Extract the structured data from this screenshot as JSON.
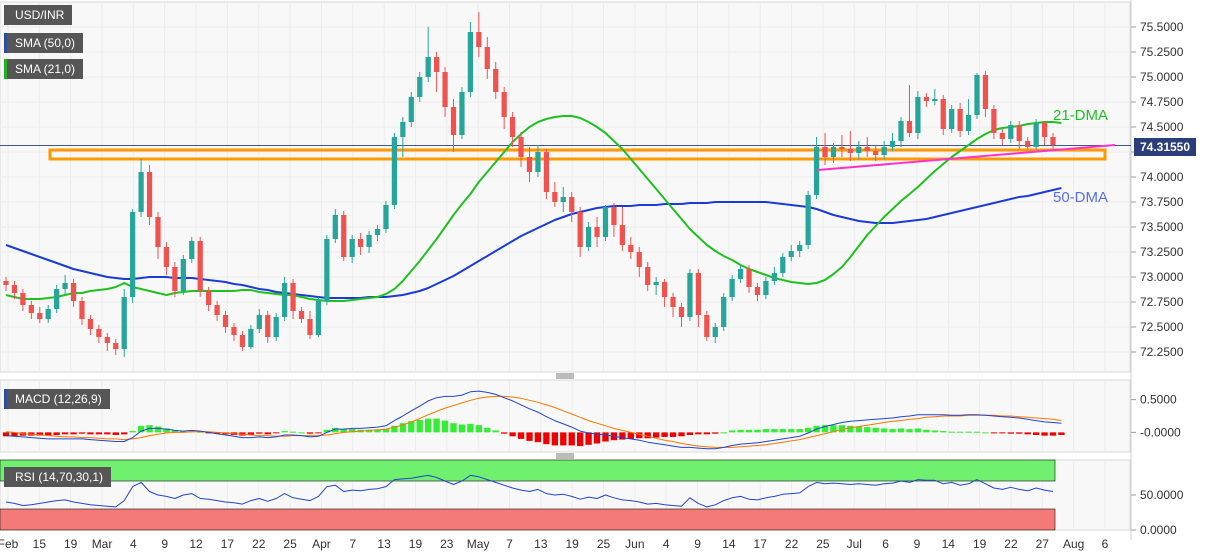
{
  "symbol_label": "USD/INR",
  "indicators": {
    "sma50_label": "SMA (50,0)",
    "sma21_label": "SMA (21,0)",
    "macd_label": "MACD (12,26,9)",
    "rsi_label": "RSI (14,70,30,1)"
  },
  "annotations": {
    "dma21": "21-DMA",
    "dma50": "50-DMA"
  },
  "last_price": "74.31550",
  "colors": {
    "up": "#26a69a",
    "down": "#ef5350",
    "sma21": "#21c021",
    "sma50": "#1c3bd6",
    "support_zone": "#ff9900",
    "trendline": "#ff33cc",
    "macd_line": "#2244cc",
    "signal_line": "#ff7700",
    "hist_pos": "#33ee33",
    "hist_neg": "#ee0000",
    "rsi_overbought": "#6ff06f",
    "rsi_oversold": "#f47a7a"
  },
  "chart_data": {
    "type": "candlestick",
    "price_axis": {
      "range": [
        72.05,
        75.75
      ],
      "ticks": [
        "75.5000",
        "75.2500",
        "75.0000",
        "74.7500",
        "74.5000",
        "74.2500",
        "74.0000",
        "73.7500",
        "73.5000",
        "73.2500",
        "73.0000",
        "72.7500",
        "72.5000",
        "72.2500"
      ]
    },
    "date_axis": {
      "ticks": [
        "Feb",
        "15",
        "19",
        "Mar",
        "4",
        "9",
        "12",
        "17",
        "22",
        "25",
        "Apr",
        "7",
        "13",
        "19",
        "23",
        "May",
        "7",
        "13",
        "19",
        "25",
        "Jun",
        "4",
        "9",
        "14",
        "17",
        "22",
        "25",
        "Jul",
        "6",
        "9",
        "14",
        "19",
        "22",
        "27",
        "Aug",
        "6"
      ]
    },
    "macd_axis": {
      "ticks": [
        "0.5000",
        "-0.0000"
      ]
    },
    "rsi_axis": {
      "ticks": [
        "50.0000",
        "0.0000"
      ]
    },
    "candles": [
      [
        72.96,
        72.92,
        73.0,
        72.86
      ],
      [
        72.92,
        72.84,
        72.96,
        72.78
      ],
      [
        72.84,
        72.72,
        72.88,
        72.66
      ],
      [
        72.72,
        72.64,
        72.76,
        72.58
      ],
      [
        72.64,
        72.58,
        72.7,
        72.54
      ],
      [
        72.58,
        72.68,
        72.72,
        72.54
      ],
      [
        72.68,
        72.88,
        72.92,
        72.64
      ],
      [
        72.88,
        72.94,
        73.02,
        72.82
      ],
      [
        72.94,
        72.76,
        72.98,
        72.7
      ],
      [
        72.76,
        72.58,
        72.8,
        72.52
      ],
      [
        72.58,
        72.48,
        72.62,
        72.42
      ],
      [
        72.48,
        72.4,
        72.52,
        72.34
      ],
      [
        72.4,
        72.34,
        72.44,
        72.26
      ],
      [
        72.34,
        72.28,
        72.38,
        72.22
      ],
      [
        72.28,
        72.8,
        72.88,
        72.2
      ],
      [
        72.8,
        73.65,
        73.68,
        72.74
      ],
      [
        73.65,
        74.05,
        74.18,
        73.6
      ],
      [
        74.05,
        73.6,
        74.12,
        73.52
      ],
      [
        73.6,
        73.3,
        73.65,
        73.18
      ],
      [
        73.3,
        73.1,
        73.35,
        73.02
      ],
      [
        73.1,
        72.86,
        73.15,
        72.8
      ],
      [
        72.86,
        73.18,
        73.22,
        72.82
      ],
      [
        73.18,
        73.36,
        73.4,
        73.14
      ],
      [
        73.36,
        72.86,
        73.4,
        72.8
      ],
      [
        72.86,
        72.72,
        72.9,
        72.66
      ],
      [
        72.72,
        72.62,
        72.76,
        72.56
      ],
      [
        72.62,
        72.5,
        72.66,
        72.44
      ],
      [
        72.5,
        72.42,
        72.54,
        72.36
      ],
      [
        72.42,
        72.3,
        72.46,
        72.26
      ],
      [
        72.3,
        72.48,
        72.52,
        72.28
      ],
      [
        72.48,
        72.62,
        72.68,
        72.44
      ],
      [
        72.62,
        72.4,
        72.66,
        72.34
      ],
      [
        72.4,
        72.6,
        72.64,
        72.36
      ],
      [
        72.6,
        72.94,
        73.0,
        72.56
      ],
      [
        72.94,
        72.66,
        72.98,
        72.58
      ],
      [
        72.66,
        72.58,
        72.7,
        72.54
      ],
      [
        72.58,
        72.42,
        72.66,
        72.38
      ],
      [
        72.42,
        72.76,
        72.8,
        72.4
      ],
      [
        72.76,
        73.38,
        73.42,
        72.72
      ],
      [
        73.38,
        73.62,
        73.68,
        73.34
      ],
      [
        73.62,
        73.2,
        73.66,
        73.16
      ],
      [
        73.2,
        73.38,
        73.42,
        73.14
      ],
      [
        73.38,
        73.3,
        73.44,
        73.22
      ],
      [
        73.3,
        73.42,
        73.46,
        73.24
      ],
      [
        73.42,
        73.48,
        73.52,
        73.36
      ],
      [
        73.48,
        73.72,
        73.76,
        73.44
      ],
      [
        73.72,
        74.4,
        74.44,
        73.68
      ],
      [
        74.4,
        74.55,
        74.6,
        74.2
      ],
      [
        74.55,
        74.8,
        74.85,
        74.5
      ],
      [
        74.8,
        75.0,
        75.05,
        74.75
      ],
      [
        75.0,
        75.2,
        75.5,
        74.95
      ],
      [
        75.2,
        75.05,
        75.25,
        74.85
      ],
      [
        75.05,
        74.7,
        75.1,
        74.6
      ],
      [
        74.7,
        74.42,
        74.78,
        74.25
      ],
      [
        74.42,
        74.85,
        74.9,
        74.38
      ],
      [
        74.85,
        75.45,
        75.55,
        74.8
      ],
      [
        75.45,
        75.3,
        75.65,
        75.2
      ],
      [
        75.3,
        75.08,
        75.4,
        74.98
      ],
      [
        75.08,
        74.85,
        75.15,
        74.78
      ],
      [
        74.85,
        74.6,
        74.9,
        74.48
      ],
      [
        74.6,
        74.4,
        74.65,
        74.3
      ],
      [
        74.4,
        74.2,
        74.45,
        74.1
      ],
      [
        74.2,
        74.05,
        74.3,
        73.95
      ],
      [
        74.05,
        74.25,
        74.32,
        74.0
      ],
      [
        74.25,
        73.85,
        74.28,
        73.78
      ],
      [
        73.85,
        73.75,
        73.95,
        73.7
      ],
      [
        73.75,
        73.8,
        73.9,
        73.65
      ],
      [
        73.8,
        73.65,
        73.85,
        73.55
      ],
      [
        73.65,
        73.3,
        73.7,
        73.2
      ],
      [
        73.3,
        73.5,
        73.55,
        73.26
      ],
      [
        73.5,
        73.4,
        73.6,
        73.3
      ],
      [
        73.4,
        73.7,
        73.72,
        73.36
      ],
      [
        73.7,
        73.52,
        73.74,
        73.4
      ],
      [
        73.52,
        73.32,
        73.7,
        73.26
      ],
      [
        73.32,
        73.25,
        73.4,
        73.18
      ],
      [
        73.25,
        73.1,
        73.3,
        73.0
      ],
      [
        73.1,
        72.92,
        73.15,
        72.86
      ],
      [
        72.92,
        72.95,
        73.0,
        72.82
      ],
      [
        72.95,
        72.8,
        72.98,
        72.7
      ],
      [
        72.8,
        72.7,
        72.84,
        72.6
      ],
      [
        72.7,
        72.6,
        72.74,
        72.5
      ],
      [
        72.6,
        73.04,
        73.08,
        72.56
      ],
      [
        73.04,
        72.62,
        73.08,
        72.5
      ],
      [
        72.62,
        72.4,
        72.66,
        72.36
      ],
      [
        72.4,
        72.5,
        72.54,
        72.34
      ],
      [
        72.5,
        72.8,
        72.84,
        72.46
      ],
      [
        72.8,
        72.98,
        73.02,
        72.76
      ],
      [
        72.98,
        73.08,
        73.12,
        72.94
      ],
      [
        73.08,
        72.9,
        73.12,
        72.84
      ],
      [
        72.9,
        72.82,
        72.94,
        72.76
      ],
      [
        72.82,
        72.96,
        73.0,
        72.78
      ],
      [
        72.96,
        73.04,
        73.1,
        72.92
      ],
      [
        73.04,
        73.2,
        73.24,
        73.0
      ],
      [
        73.2,
        73.26,
        73.32,
        73.16
      ],
      [
        73.26,
        73.32,
        73.36,
        73.2
      ],
      [
        73.32,
        73.82,
        73.86,
        73.28
      ],
      [
        73.82,
        74.3,
        74.4,
        73.78
      ],
      [
        74.3,
        74.2,
        74.44,
        74.12
      ],
      [
        74.2,
        74.3,
        74.34,
        74.14
      ],
      [
        74.3,
        74.28,
        74.42,
        74.2
      ],
      [
        74.28,
        74.24,
        74.46,
        74.16
      ],
      [
        74.24,
        74.3,
        74.36,
        74.18
      ],
      [
        74.3,
        74.26,
        74.4,
        74.2
      ],
      [
        74.26,
        74.22,
        74.32,
        74.16
      ],
      [
        74.22,
        74.3,
        74.36,
        74.18
      ],
      [
        74.3,
        74.36,
        74.44,
        74.26
      ],
      [
        74.36,
        74.56,
        74.6,
        74.3
      ],
      [
        74.56,
        74.44,
        74.92,
        74.4
      ],
      [
        74.44,
        74.8,
        74.86,
        74.38
      ],
      [
        74.8,
        74.76,
        74.84,
        74.7
      ],
      [
        74.76,
        74.78,
        74.88,
        74.72
      ],
      [
        74.78,
        74.48,
        74.82,
        74.42
      ],
      [
        74.48,
        74.68,
        74.72,
        74.44
      ],
      [
        74.68,
        74.46,
        74.74,
        74.4
      ],
      [
        74.46,
        74.62,
        74.78,
        74.42
      ],
      [
        74.62,
        75.02,
        75.04,
        74.58
      ],
      [
        75.02,
        74.68,
        75.06,
        74.6
      ],
      [
        74.68,
        74.44,
        74.72,
        74.38
      ],
      [
        74.44,
        74.38,
        74.48,
        74.32
      ],
      [
        74.38,
        74.52,
        74.56,
        74.34
      ],
      [
        74.52,
        74.36,
        74.56,
        74.28
      ],
      [
        74.36,
        74.3,
        74.4,
        74.28
      ],
      [
        74.3,
        74.54,
        74.58,
        74.28
      ],
      [
        74.54,
        74.4,
        74.56,
        74.32
      ],
      [
        74.4,
        74.32,
        74.44,
        74.26
      ]
    ],
    "sma21": [
      72.82,
      72.8,
      72.78,
      72.78,
      72.78,
      72.79,
      72.8,
      72.82,
      72.84,
      72.84,
      72.86,
      72.87,
      72.88,
      72.9,
      72.94,
      72.9,
      72.88,
      72.86,
      72.84,
      72.82,
      72.84,
      72.85,
      72.86,
      72.86,
      72.86,
      72.86,
      72.86,
      72.86,
      72.87,
      72.87,
      72.85,
      72.84,
      72.83,
      72.82,
      72.82,
      72.8,
      72.78,
      72.77,
      72.76,
      72.76,
      72.76,
      72.77,
      72.78,
      72.79,
      72.8,
      72.83,
      72.88,
      72.96,
      73.06,
      73.16,
      73.27,
      73.38,
      73.5,
      73.62,
      73.73,
      73.83,
      73.95,
      74.05,
      74.15,
      74.25,
      74.35,
      74.43,
      74.5,
      74.55,
      74.58,
      74.6,
      74.61,
      74.61,
      74.59,
      74.55,
      74.5,
      74.44,
      74.36,
      74.28,
      74.18,
      74.08,
      73.98,
      73.88,
      73.78,
      73.68,
      73.58,
      73.48,
      73.4,
      73.32,
      73.26,
      73.21,
      73.17,
      73.12,
      73.08,
      73.05,
      73.02,
      72.99,
      72.97,
      72.95,
      72.94,
      72.93,
      72.94,
      72.97,
      73.03,
      73.1,
      73.2,
      73.31,
      73.42,
      73.51,
      73.6,
      73.68,
      73.76,
      73.83,
      73.9,
      73.98,
      74.06,
      74.13,
      74.2,
      74.26,
      74.32,
      74.38,
      74.43,
      74.47,
      74.49,
      74.5,
      74.51,
      74.53,
      74.54,
      74.55,
      74.55,
      74.54
    ],
    "sma50": [
      73.32,
      73.29,
      73.26,
      73.23,
      73.2,
      73.17,
      73.14,
      73.11,
      73.08,
      73.06,
      73.04,
      73.02,
      73.0,
      72.99,
      72.98,
      72.98,
      72.99,
      73.0,
      73.0,
      73.0,
      72.99,
      72.99,
      72.99,
      72.98,
      72.97,
      72.96,
      72.95,
      72.93,
      72.92,
      72.9,
      72.88,
      72.87,
      72.85,
      72.84,
      72.83,
      72.82,
      72.81,
      72.8,
      72.79,
      72.79,
      72.79,
      72.79,
      72.79,
      72.8,
      72.8,
      72.8,
      72.81,
      72.82,
      72.84,
      72.86,
      72.89,
      72.93,
      72.97,
      73.01,
      73.06,
      73.11,
      73.16,
      73.21,
      73.26,
      73.31,
      73.36,
      73.41,
      73.45,
      73.49,
      73.53,
      73.57,
      73.6,
      73.63,
      73.65,
      73.67,
      73.69,
      73.7,
      73.71,
      73.71,
      73.71,
      73.72,
      73.72,
      73.72,
      73.73,
      73.73,
      73.73,
      73.74,
      73.74,
      73.74,
      73.75,
      73.75,
      73.75,
      73.75,
      73.75,
      73.75,
      73.75,
      73.74,
      73.73,
      73.72,
      73.71,
      73.7,
      73.68,
      73.65,
      73.62,
      73.6,
      73.58,
      73.56,
      73.55,
      73.54,
      73.54,
      73.54,
      73.55,
      73.56,
      73.57,
      73.58,
      73.6,
      73.62,
      73.64,
      73.66,
      73.68,
      73.7,
      73.72,
      73.74,
      73.76,
      73.78,
      73.8,
      73.81,
      73.83,
      73.85,
      73.87,
      73.89
    ],
    "support_zone": [
      74.18,
      74.27
    ],
    "trendline": {
      "from": 74.07,
      "to": 74.32
    },
    "macd_range": [
      -0.3,
      0.8
    ],
    "macd": [
      -0.05,
      -0.06,
      -0.07,
      -0.08,
      -0.09,
      -0.1,
      -0.1,
      -0.1,
      -0.1,
      -0.1,
      -0.11,
      -0.12,
      -0.13,
      -0.14,
      -0.14,
      -0.08,
      0.02,
      0.06,
      0.06,
      0.05,
      0.03,
      0.02,
      0.03,
      0.02,
      0.0,
      -0.02,
      -0.04,
      -0.06,
      -0.08,
      -0.08,
      -0.07,
      -0.08,
      -0.07,
      -0.04,
      -0.04,
      -0.05,
      -0.07,
      -0.06,
      0.0,
      0.05,
      0.05,
      0.06,
      0.06,
      0.07,
      0.08,
      0.1,
      0.18,
      0.25,
      0.33,
      0.4,
      0.48,
      0.53,
      0.55,
      0.55,
      0.57,
      0.62,
      0.63,
      0.61,
      0.58,
      0.53,
      0.48,
      0.42,
      0.36,
      0.31,
      0.24,
      0.18,
      0.13,
      0.08,
      0.02,
      -0.01,
      -0.03,
      -0.04,
      -0.06,
      -0.08,
      -0.1,
      -0.12,
      -0.15,
      -0.17,
      -0.19,
      -0.21,
      -0.23,
      -0.23,
      -0.24,
      -0.25,
      -0.25,
      -0.23,
      -0.2,
      -0.18,
      -0.17,
      -0.16,
      -0.14,
      -0.12,
      -0.1,
      -0.08,
      -0.06,
      -0.01,
      0.05,
      0.09,
      0.12,
      0.15,
      0.17,
      0.18,
      0.19,
      0.2,
      0.21,
      0.22,
      0.24,
      0.25,
      0.27,
      0.27,
      0.27,
      0.27,
      0.26,
      0.26,
      0.27,
      0.27,
      0.26,
      0.25,
      0.24,
      0.23,
      0.22,
      0.2,
      0.18,
      0.16,
      0.15,
      0.14
    ],
    "signal": [
      0.01,
      0.0,
      -0.02,
      -0.03,
      -0.04,
      -0.05,
      -0.06,
      -0.07,
      -0.07,
      -0.08,
      -0.08,
      -0.09,
      -0.1,
      -0.1,
      -0.11,
      -0.1,
      -0.08,
      -0.05,
      -0.03,
      -0.01,
      0.0,
      0.0,
      0.01,
      0.01,
      0.01,
      0.0,
      -0.01,
      -0.02,
      -0.03,
      -0.04,
      -0.05,
      -0.05,
      -0.06,
      -0.06,
      -0.05,
      -0.05,
      -0.05,
      -0.05,
      -0.04,
      -0.02,
      0.0,
      0.01,
      0.02,
      0.03,
      0.04,
      0.05,
      0.08,
      0.11,
      0.16,
      0.21,
      0.27,
      0.32,
      0.37,
      0.41,
      0.45,
      0.49,
      0.52,
      0.54,
      0.55,
      0.55,
      0.54,
      0.52,
      0.49,
      0.46,
      0.42,
      0.38,
      0.33,
      0.28,
      0.23,
      0.18,
      0.14,
      0.1,
      0.06,
      0.03,
      0.0,
      -0.03,
      -0.06,
      -0.09,
      -0.12,
      -0.14,
      -0.17,
      -0.19,
      -0.21,
      -0.22,
      -0.23,
      -0.23,
      -0.23,
      -0.22,
      -0.21,
      -0.2,
      -0.19,
      -0.17,
      -0.15,
      -0.13,
      -0.11,
      -0.08,
      -0.05,
      -0.02,
      0.01,
      0.04,
      0.07,
      0.09,
      0.11,
      0.13,
      0.15,
      0.17,
      0.18,
      0.2,
      0.21,
      0.23,
      0.24,
      0.25,
      0.25,
      0.25,
      0.26,
      0.26,
      0.26,
      0.26,
      0.25,
      0.25,
      0.24,
      0.23,
      0.22,
      0.21,
      0.2,
      0.18
    ],
    "rsi_range": [
      0,
      100
    ],
    "rsi_levels": [
      30,
      70
    ],
    "rsi": [
      40,
      38,
      35,
      36,
      38,
      40,
      42,
      43,
      40,
      38,
      36,
      35,
      34,
      33,
      42,
      62,
      68,
      55,
      50,
      48,
      45,
      50,
      52,
      45,
      44,
      42,
      40,
      39,
      37,
      42,
      45,
      41,
      45,
      52,
      46,
      44,
      42,
      48,
      62,
      64,
      55,
      57,
      56,
      58,
      59,
      62,
      72,
      73,
      74,
      76,
      78,
      75,
      70,
      65,
      70,
      78,
      76,
      72,
      68,
      64,
      60,
      57,
      55,
      58,
      52,
      50,
      51,
      48,
      44,
      47,
      45,
      50,
      46,
      43,
      42,
      40,
      37,
      38,
      36,
      35,
      34,
      46,
      38,
      33,
      36,
      42,
      46,
      48,
      44,
      43,
      46,
      48,
      51,
      52,
      53,
      62,
      68,
      66,
      67,
      66,
      65,
      66,
      65,
      64,
      66,
      67,
      70,
      68,
      72,
      71,
      71,
      66,
      68,
      64,
      66,
      72,
      66,
      60,
      58,
      61,
      58,
      56,
      60,
      57,
      55
    ]
  }
}
